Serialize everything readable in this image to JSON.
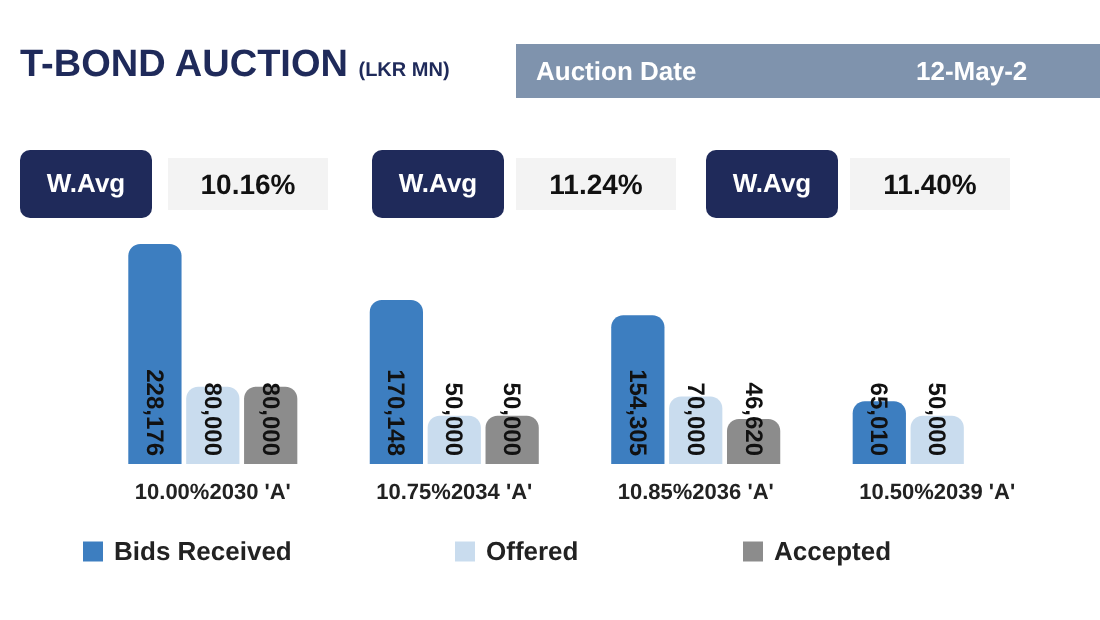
{
  "chart_data": {
    "type": "bar",
    "title": "T-BOND AUCTION",
    "subtitle": "(LKR MN)",
    "annotations": [
      "Auction Date",
      "12-May-2",
      "W.Avg",
      "10.16%",
      "W.Avg",
      "11.24%",
      "W.Avg",
      "11.40%"
    ],
    "categories": [
      "10.00%2030 'A'",
      "10.75%2034 'A'",
      "10.85%2036 'A'",
      "10.50%2039 'A'"
    ],
    "series": [
      {
        "name": "Bids Received",
        "color": "#3d7ec0",
        "values": [
          228176,
          170148,
          154305,
          65010
        ],
        "value_labels": [
          "228,176",
          "170,148",
          "154,305",
          "65,010"
        ]
      },
      {
        "name": "Offered",
        "color": "#c9dcee",
        "values": [
          80000,
          50000,
          70000,
          50000
        ],
        "value_labels": [
          "80,000",
          "50,000",
          "70,000",
          "50,000"
        ]
      },
      {
        "name": "Accepted",
        "color": "#8c8c8c",
        "values": [
          80000,
          50000,
          46620,
          null
        ],
        "value_labels": [
          "80,000",
          "50,000",
          "46,620",
          null
        ]
      }
    ],
    "legend": "bottom",
    "tick_labels": "x"
  }
}
